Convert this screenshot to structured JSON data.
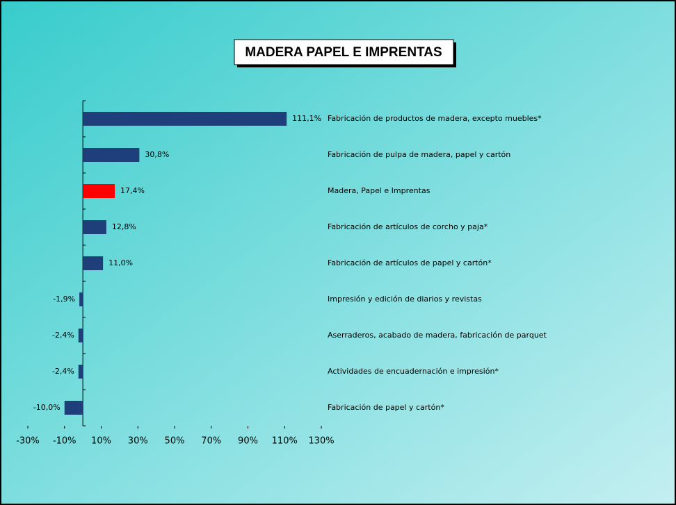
{
  "chart_data": {
    "type": "barh",
    "title": "MADERA PAPEL E IMPRENTAS",
    "categories": [
      "Fabricación de productos de madera, excepto muebles*",
      "Fabricación de pulpa de madera, papel y cartón",
      "Madera, Papel e Imprentas",
      "Fabricación de artículos de corcho y paja*",
      "Fabricación de artículos de papel y cartón*",
      "Impresión y edición de diarios y revistas",
      "Aserraderos, acabado de madera, fabricación de parquet",
      "Actividades de encuadernación e impresión*",
      "Fabricación de papel y cartón*"
    ],
    "values": [
      111.1,
      30.8,
      17.4,
      12.8,
      11.0,
      -1.9,
      -2.4,
      -2.4,
      -10.0
    ],
    "value_labels": [
      "111,1%",
      "30,8%",
      "17,4%",
      "12,8%",
      "11,0%",
      "-1,9%",
      "-2,4%",
      "-2,4%",
      "-10,0%"
    ],
    "colors": [
      "#1f3f7a",
      "#1f3f7a",
      "#ff0000",
      "#1f3f7a",
      "#1f3f7a",
      "#1f3f7a",
      "#1f3f7a",
      "#1f3f7a",
      "#1f3f7a"
    ],
    "xlim": [
      -30,
      130
    ],
    "xticks": [
      {
        "value": -30,
        "label": "-30%"
      },
      {
        "value": -10,
        "label": "-10%"
      },
      {
        "value": 10,
        "label": "10%"
      },
      {
        "value": 30,
        "label": "30%"
      },
      {
        "value": 50,
        "label": "50%"
      },
      {
        "value": 70,
        "label": "70%"
      },
      {
        "value": 90,
        "label": "90%"
      },
      {
        "value": 110,
        "label": "110%"
      },
      {
        "value": 130,
        "label": "130%"
      }
    ],
    "grid": false
  }
}
